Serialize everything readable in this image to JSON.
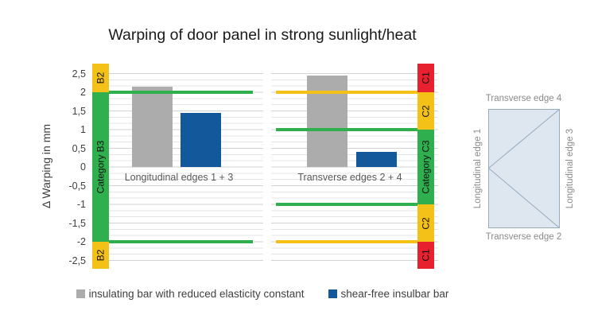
{
  "title": "Warping of door panel in strong sunlight/heat",
  "y_axis": {
    "label": "Δ Warping in mm",
    "ticks": [
      "2,5",
      "2",
      "1,5",
      "1",
      "0,5",
      "0",
      "-0,5",
      "-1",
      "-1,5",
      "-2",
      "-2,5"
    ]
  },
  "chart_data": {
    "type": "bar",
    "title": "Warping of door panel in strong sunlight/heat",
    "xlabel": "",
    "ylabel": "Δ Warping in mm",
    "ylim": [
      -2.5,
      2.5
    ],
    "grid": true,
    "legend_position": "bottom",
    "categories": [
      "Longitudinal edges 1 + 3",
      "Transverse edges 2 + 4"
    ],
    "series": [
      {
        "name": "insulating bar with reduced elasticity constant",
        "color": "#ACACAC",
        "values": [
          2.15,
          2.45
        ]
      },
      {
        "name": "shear-free insulbar bar",
        "color": "#14589C",
        "values": [
          1.45,
          0.4
        ]
      }
    ],
    "limit_lines": [
      {
        "group": "Longitudinal edges 1 + 3",
        "value": 2,
        "color": "#2FAF4E"
      },
      {
        "group": "Longitudinal edges 1 + 3",
        "value": -2,
        "color": "#2FAF4E"
      },
      {
        "group": "Transverse edges 2 + 4",
        "value": 2,
        "color": "#F3C117"
      },
      {
        "group": "Transverse edges 2 + 4",
        "value": 1,
        "color": "#2FAF4E"
      },
      {
        "group": "Transverse edges 2 + 4",
        "value": -1,
        "color": "#2FAF4E"
      },
      {
        "group": "Transverse edges 2 + 4",
        "value": -2,
        "color": "#F3C117"
      }
    ]
  },
  "groups": {
    "group1_label": "Longitudinal edges 1 + 3",
    "group2_label": "Transverse edges 2 + 4"
  },
  "strips": {
    "left": [
      {
        "label": "B2",
        "color": "#F3C117"
      },
      {
        "label": "Category B3",
        "color": "#2FAF4E"
      },
      {
        "label": "B2",
        "color": "#F3C117"
      }
    ],
    "right": [
      {
        "label": "C1",
        "color": "#E8212F"
      },
      {
        "label": "C2",
        "color": "#F3C117"
      },
      {
        "label": "Category C3",
        "color": "#2FAF4E"
      },
      {
        "label": "C2",
        "color": "#F3C117"
      },
      {
        "label": "C1",
        "color": "#E8212F"
      }
    ]
  },
  "legend": {
    "item1": "insulating bar with reduced elasticity constant",
    "item2": "shear-free insulbar bar"
  },
  "panel_diagram": {
    "top_label": "Transverse edge 4",
    "bottom_label": "Transverse edge 2",
    "left_label": "Longitudinal edge 1",
    "right_label": "Longitudinal edge 3",
    "fill": "#DEE7F0",
    "stroke": "#94AABF"
  }
}
